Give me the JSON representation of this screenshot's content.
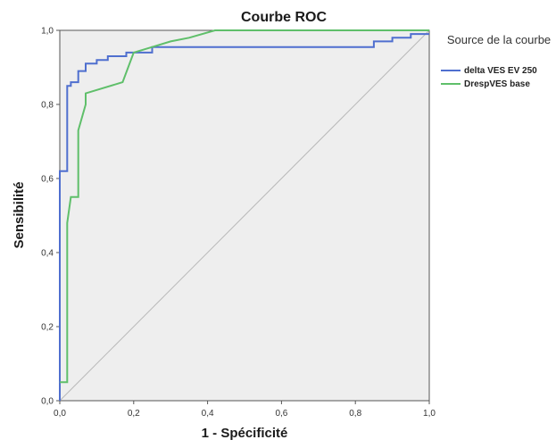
{
  "chart_data": {
    "type": "line",
    "title": "Courbe ROC",
    "xlabel": "1 - Spécificité",
    "ylabel": "Sensibilité",
    "xlim": [
      0,
      1
    ],
    "ylim": [
      0,
      1
    ],
    "xticks": [
      "0,0",
      "0,2",
      "0,4",
      "0,6",
      "0,8",
      "1,0"
    ],
    "yticks": [
      "0,0",
      "0,2",
      "0,4",
      "0,6",
      "0,8",
      "1,0"
    ],
    "plot_background": "#eeeeee",
    "grid": false,
    "diagonal_reference_line": true,
    "legend_title": "Source de la courbe",
    "legend_position": "right",
    "series": [
      {
        "name": "delta VES EV 250",
        "color": "#4f6fcf",
        "x": [
          0,
          0,
          0.02,
          0.02,
          0.03,
          0.03,
          0.05,
          0.05,
          0.07,
          0.07,
          0.1,
          0.1,
          0.13,
          0.13,
          0.18,
          0.18,
          0.25,
          0.25,
          0.85,
          0.85,
          0.9,
          0.9,
          0.95,
          0.95,
          1
        ],
        "y": [
          0,
          0.62,
          0.62,
          0.85,
          0.85,
          0.86,
          0.86,
          0.89,
          0.89,
          0.91,
          0.91,
          0.92,
          0.92,
          0.93,
          0.93,
          0.94,
          0.94,
          0.955,
          0.955,
          0.97,
          0.97,
          0.98,
          0.98,
          0.99,
          0.99
        ]
      },
      {
        "name": "DrespVES base",
        "color": "#5fbf6a",
        "x": [
          0,
          0.02,
          0.02,
          0.03,
          0.05,
          0.05,
          0.07,
          0.07,
          0.17,
          0.2,
          0.25,
          0.3,
          0.35,
          0.42,
          0.45,
          1
        ],
        "y": [
          0.05,
          0.05,
          0.48,
          0.55,
          0.55,
          0.73,
          0.8,
          0.83,
          0.86,
          0.94,
          0.955,
          0.97,
          0.98,
          1,
          1,
          1
        ]
      }
    ]
  }
}
